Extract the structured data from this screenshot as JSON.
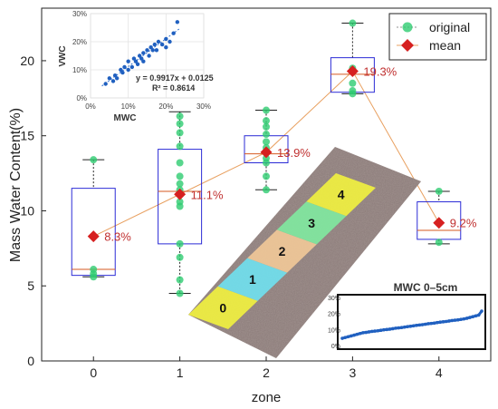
{
  "chart_data": [
    {
      "type": "box",
      "xlabel": "zone",
      "ylabel": "Mass Water Content(%)",
      "xlim": [
        -0.6,
        4.6
      ],
      "ylim": [
        0,
        23.5
      ],
      "xticks": [
        "0",
        "1",
        "2",
        "3",
        "4"
      ],
      "yticks": [
        "0",
        "5",
        "10",
        "15",
        "20"
      ],
      "grid": false,
      "legend": {
        "placement": "top-right",
        "entries": [
          {
            "label": "original",
            "marker": "circle",
            "color": "#2ecc71"
          },
          {
            "label": "mean",
            "marker": "diamond",
            "color": "#d62020"
          }
        ]
      },
      "boxes": [
        {
          "zone": 0,
          "whisker_low": 5.6,
          "q1": 5.7,
          "median": 6.1,
          "q3": 11.5,
          "whisker_high": 13.4
        },
        {
          "zone": 1,
          "whisker_low": 4.5,
          "q1": 7.8,
          "median": 11.3,
          "q3": 14.1,
          "whisker_high": 16.6
        },
        {
          "zone": 2,
          "whisker_low": 11.4,
          "q1": 13.2,
          "median": 13.8,
          "q3": 15.0,
          "whisker_high": 16.7
        },
        {
          "zone": 3,
          "whisker_low": 17.8,
          "q1": 17.9,
          "median": 19.1,
          "q3": 20.2,
          "whisker_high": 22.5
        },
        {
          "zone": 4,
          "whisker_low": 7.8,
          "q1": 8.1,
          "median": 8.7,
          "q3": 10.6,
          "whisker_high": 11.3
        }
      ],
      "points": [
        {
          "zone": 0,
          "values": [
            5.6,
            5.8,
            6.1,
            13.4
          ]
        },
        {
          "zone": 1,
          "values": [
            4.5,
            5.4,
            6.9,
            7.8,
            10.3,
            10.6,
            11.4,
            11.8,
            12.3,
            13.2,
            14.3,
            15.2,
            15.8,
            16.3
          ]
        },
        {
          "zone": 2,
          "values": [
            11.4,
            12.3,
            13.2,
            13.5,
            13.9,
            14.2,
            14.6,
            15.1,
            15.6,
            16.0,
            16.7
          ]
        },
        {
          "zone": 3,
          "values": [
            17.8,
            18.0,
            18.5,
            19.5,
            22.5
          ]
        },
        {
          "zone": 4,
          "values": [
            7.9,
            11.3
          ]
        }
      ],
      "means": [
        {
          "zone": 0,
          "value": 8.3,
          "label": "8.3%"
        },
        {
          "zone": 1,
          "value": 11.1,
          "label": "11.1%"
        },
        {
          "zone": 2,
          "value": 13.9,
          "label": "13.9%"
        },
        {
          "zone": 3,
          "value": 19.3,
          "label": "19.3%"
        },
        {
          "zone": 4,
          "value": 9.2,
          "label": "9.2%"
        }
      ],
      "colors": {
        "box": "#2b2bd6",
        "median": "#d65a20",
        "points": "#2ecc71",
        "mean": "#d62020",
        "mean_line": "#e8a060",
        "label": "#c03030"
      }
    },
    {
      "type": "scatter",
      "xlabel": "MWC",
      "ylabel": "VWC",
      "xticks": [
        "0%",
        "10%",
        "20%",
        "30%"
      ],
      "yticks": [
        "0%",
        "10%",
        "20%",
        "30%"
      ],
      "xlim": [
        0,
        0.3
      ],
      "ylim": [
        0,
        0.3
      ],
      "grid": true,
      "equation": "y = 0.9917x + 0.0125",
      "r2": "R² = 0.8614",
      "fit": {
        "slope": 0.9917,
        "intercept": 0.0125
      },
      "x": [
        0.04,
        0.05,
        0.06,
        0.065,
        0.07,
        0.08,
        0.085,
        0.09,
        0.1,
        0.1,
        0.11,
        0.115,
        0.12,
        0.125,
        0.13,
        0.135,
        0.14,
        0.14,
        0.15,
        0.155,
        0.16,
        0.165,
        0.17,
        0.175,
        0.18,
        0.19,
        0.2,
        0.2,
        0.21,
        0.22,
        0.23
      ],
      "y": [
        0.05,
        0.07,
        0.06,
        0.08,
        0.07,
        0.1,
        0.09,
        0.11,
        0.1,
        0.13,
        0.11,
        0.14,
        0.13,
        0.12,
        0.15,
        0.14,
        0.16,
        0.13,
        0.17,
        0.15,
        0.18,
        0.17,
        0.19,
        0.17,
        0.2,
        0.19,
        0.21,
        0.18,
        0.2,
        0.23,
        0.27
      ],
      "colors": {
        "points": "#2060c0",
        "fit": "#3070d0"
      }
    },
    {
      "type": "line",
      "title": "MWC 0–5cm",
      "yticks": [
        "0%",
        "10%",
        "20%",
        "30%"
      ],
      "ylim": [
        0,
        0.3
      ],
      "x": [
        1,
        2,
        3,
        4,
        5,
        6,
        7,
        8,
        9,
        10,
        11,
        12,
        13,
        14,
        15,
        16,
        17,
        18,
        19,
        20,
        21,
        22,
        23,
        24,
        25,
        26,
        27,
        28,
        29,
        30,
        31,
        32,
        33,
        34,
        35,
        36,
        37,
        38,
        39,
        40,
        41,
        42,
        43,
        44,
        45,
        46,
        47,
        48
      ],
      "y": [
        0.045,
        0.05,
        0.055,
        0.06,
        0.065,
        0.07,
        0.075,
        0.08,
        0.082,
        0.085,
        0.088,
        0.09,
        0.092,
        0.095,
        0.098,
        0.1,
        0.102,
        0.105,
        0.108,
        0.11,
        0.112,
        0.115,
        0.118,
        0.12,
        0.123,
        0.126,
        0.128,
        0.13,
        0.133,
        0.136,
        0.138,
        0.14,
        0.143,
        0.146,
        0.148,
        0.15,
        0.153,
        0.156,
        0.158,
        0.16,
        0.163,
        0.166,
        0.17,
        0.175,
        0.18,
        0.185,
        0.19,
        0.215
      ],
      "colors": {
        "line": "#2060c0"
      }
    }
  ],
  "map_inset": {
    "zone_labels": [
      "0",
      "1",
      "2",
      "3",
      "4"
    ],
    "zone_colors": [
      "#f0f040",
      "#70e0ee",
      "#f0c898",
      "#80e8a0",
      "#f0f040"
    ]
  }
}
